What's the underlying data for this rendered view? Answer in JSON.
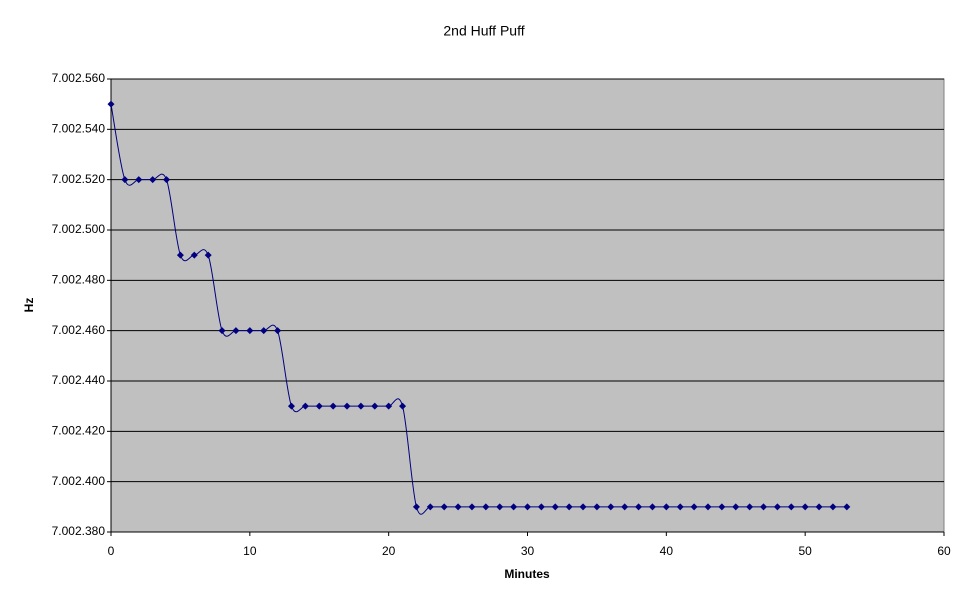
{
  "chart_data": {
    "type": "line",
    "title": "2nd Huff Puff",
    "x_label": "Minutes",
    "y_label": "Hz",
    "x": [
      0,
      1,
      2,
      3,
      4,
      5,
      6,
      7,
      8,
      9,
      10,
      11,
      12,
      13,
      14,
      15,
      16,
      17,
      18,
      19,
      20,
      21,
      22,
      23,
      24,
      25,
      26,
      27,
      28,
      29,
      30,
      31,
      32,
      33,
      34,
      35,
      36,
      37,
      38,
      39,
      40,
      41,
      42,
      43,
      44,
      45,
      46,
      47,
      48,
      49,
      50,
      51,
      52,
      53
    ],
    "values": [
      7002.55,
      7002.52,
      7002.52,
      7002.52,
      7002.52,
      7002.49,
      7002.49,
      7002.49,
      7002.46,
      7002.46,
      7002.46,
      7002.46,
      7002.46,
      7002.43,
      7002.43,
      7002.43,
      7002.43,
      7002.43,
      7002.43,
      7002.43,
      7002.43,
      7002.43,
      7002.39,
      7002.39,
      7002.39,
      7002.39,
      7002.39,
      7002.39,
      7002.39,
      7002.39,
      7002.39,
      7002.39,
      7002.39,
      7002.39,
      7002.39,
      7002.39,
      7002.39,
      7002.39,
      7002.39,
      7002.39,
      7002.39,
      7002.39,
      7002.39,
      7002.39,
      7002.39,
      7002.39,
      7002.39,
      7002.39,
      7002.39,
      7002.39,
      7002.39,
      7002.39,
      7002.39,
      7002.39
    ],
    "color": "#000080",
    "smooth": true,
    "grid": true,
    "xlim": [
      0,
      60
    ],
    "xticks": [
      0,
      10,
      20,
      30,
      40,
      50,
      60
    ],
    "ylim": [
      7002.38,
      7002.56
    ],
    "yticks": [
      {
        "value": 7002.38,
        "label": "7.002.380"
      },
      {
        "value": 7002.4,
        "label": "7.002.400"
      },
      {
        "value": 7002.42,
        "label": "7.002.420"
      },
      {
        "value": 7002.44,
        "label": "7.002.440"
      },
      {
        "value": 7002.46,
        "label": "7.002.460"
      },
      {
        "value": 7002.48,
        "label": "7.002.480"
      },
      {
        "value": 7002.5,
        "label": "7.002.500"
      },
      {
        "value": 7002.52,
        "label": "7.002.520"
      },
      {
        "value": 7002.54,
        "label": "7.002.540"
      },
      {
        "value": 7002.56,
        "label": "7.002.560"
      }
    ]
  }
}
